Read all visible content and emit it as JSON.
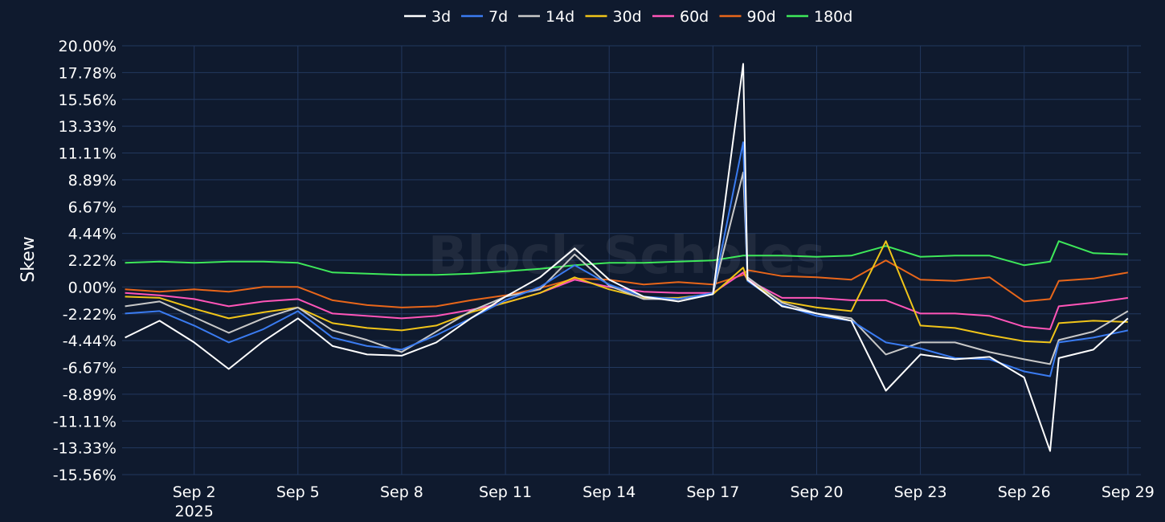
{
  "chart_data": {
    "type": "line",
    "title": "",
    "ylabel": "Skew",
    "xlabel": "",
    "watermark": "Block Scholes",
    "x_range": [
      "2025-08-30T22:00",
      "2025-09-29T09:00"
    ],
    "y_range": [
      -15.56,
      20.0
    ],
    "y_ticks": [
      "20.00%",
      "17.78%",
      "15.56%",
      "13.33%",
      "11.11%",
      "8.89%",
      "6.67%",
      "4.44%",
      "2.22%",
      "0.00%",
      "-2.22%",
      "-4.44%",
      "-6.67%",
      "-8.89%",
      "-11.11%",
      "-13.33%",
      "-15.56%"
    ],
    "x_ticks": [
      {
        "date": "2025-09-02",
        "label": "Sep 2",
        "sub": "2025"
      },
      {
        "date": "2025-09-05",
        "label": "Sep 5",
        "sub": ""
      },
      {
        "date": "2025-09-08",
        "label": "Sep 8",
        "sub": ""
      },
      {
        "date": "2025-09-11",
        "label": "Sep 11",
        "sub": ""
      },
      {
        "date": "2025-09-14",
        "label": "Sep 14",
        "sub": ""
      },
      {
        "date": "2025-09-17",
        "label": "Sep 17",
        "sub": ""
      },
      {
        "date": "2025-09-20",
        "label": "Sep 20",
        "sub": ""
      },
      {
        "date": "2025-09-23",
        "label": "Sep 23",
        "sub": ""
      },
      {
        "date": "2025-09-26",
        "label": "Sep 26",
        "sub": ""
      },
      {
        "date": "2025-09-29",
        "label": "Sep 29",
        "sub": ""
      }
    ],
    "grid": true,
    "legend_position": "top-center",
    "x": [
      "2025-08-31T00:00",
      "2025-09-01T00:00",
      "2025-09-02T00:00",
      "2025-09-03T00:00",
      "2025-09-04T00:00",
      "2025-09-05T00:00",
      "2025-09-06T00:00",
      "2025-09-07T00:00",
      "2025-09-08T00:00",
      "2025-09-09T00:00",
      "2025-09-10T00:00",
      "2025-09-11T00:00",
      "2025-09-12T00:00",
      "2025-09-13T00:00",
      "2025-09-14T00:00",
      "2025-09-15T00:00",
      "2025-09-16T00:00",
      "2025-09-17T00:00",
      "2025-09-17T21:00",
      "2025-09-18T00:00",
      "2025-09-19T00:00",
      "2025-09-20T00:00",
      "2025-09-21T00:00",
      "2025-09-22T00:00",
      "2025-09-23T00:00",
      "2025-09-24T00:00",
      "2025-09-25T00:00",
      "2025-09-26T00:00",
      "2025-09-26T18:00",
      "2025-09-27T00:00",
      "2025-09-28T00:00",
      "2025-09-29T00:00"
    ],
    "series": [
      {
        "name": "3d",
        "color": "#ffffff",
        "values": [
          -4.2,
          -2.8,
          -4.6,
          -6.8,
          -4.5,
          -2.6,
          -4.9,
          -5.6,
          -5.7,
          -4.6,
          -2.6,
          -0.8,
          0.8,
          3.2,
          0.6,
          -0.8,
          -1.2,
          -0.6,
          18.5,
          0.6,
          -1.6,
          -2.2,
          -2.8,
          -8.6,
          -5.6,
          -6.0,
          -5.8,
          -7.5,
          -13.6,
          -5.9,
          -5.2,
          -2.6
        ]
      },
      {
        "name": "7d",
        "color": "#3a7bf0",
        "values": [
          -2.2,
          -2.0,
          -3.2,
          -4.6,
          -3.5,
          -2.0,
          -4.2,
          -4.9,
          -5.2,
          -4.0,
          -2.6,
          -1.1,
          0.0,
          1.8,
          0.2,
          -0.8,
          -1.0,
          -0.5,
          12.0,
          0.5,
          -1.5,
          -2.4,
          -2.8,
          -4.6,
          -5.1,
          -5.9,
          -6.0,
          -7.0,
          -7.4,
          -4.6,
          -4.2,
          -3.6
        ]
      },
      {
        "name": "14d",
        "color": "#c8c8c8",
        "values": [
          -1.6,
          -1.2,
          -2.5,
          -3.8,
          -2.6,
          -1.7,
          -3.6,
          -4.4,
          -5.4,
          -3.7,
          -2.0,
          -0.8,
          -0.2,
          2.7,
          0.1,
          -1.0,
          -1.0,
          -0.6,
          9.5,
          0.8,
          -1.3,
          -2.2,
          -2.6,
          -5.6,
          -4.6,
          -4.6,
          -5.4,
          -6.0,
          -6.4,
          -4.4,
          -3.7,
          -2.0
        ]
      },
      {
        "name": "30d",
        "color": "#f0c419",
        "values": [
          -0.8,
          -0.9,
          -1.8,
          -2.6,
          -2.1,
          -1.7,
          -3.0,
          -3.4,
          -3.6,
          -3.2,
          -2.1,
          -1.3,
          -0.5,
          0.8,
          -0.2,
          -0.9,
          -0.9,
          -0.6,
          1.6,
          0.5,
          -1.2,
          -1.7,
          -2.0,
          3.8,
          -3.2,
          -3.4,
          -4.0,
          -4.5,
          -4.6,
          -3.0,
          -2.8,
          -2.9
        ]
      },
      {
        "name": "60d",
        "color": "#ff55b8",
        "values": [
          -0.5,
          -0.7,
          -1.0,
          -1.6,
          -1.2,
          -1.0,
          -2.2,
          -2.4,
          -2.6,
          -2.4,
          -1.9,
          -1.3,
          -0.5,
          0.6,
          0.0,
          -0.4,
          -0.5,
          -0.5,
          1.2,
          0.6,
          -0.9,
          -0.9,
          -1.1,
          -1.1,
          -2.2,
          -2.2,
          -2.4,
          -3.3,
          -3.5,
          -1.6,
          -1.3,
          -0.9
        ]
      },
      {
        "name": "90d",
        "color": "#e8661a",
        "values": [
          -0.2,
          -0.4,
          -0.2,
          -0.4,
          0.0,
          0.0,
          -1.1,
          -1.5,
          -1.7,
          -1.6,
          -1.1,
          -0.7,
          -0.1,
          0.7,
          0.6,
          0.2,
          0.4,
          0.2,
          1.0,
          1.4,
          0.9,
          0.8,
          0.6,
          2.2,
          0.6,
          0.5,
          0.8,
          -1.2,
          -1.0,
          0.5,
          0.7,
          1.2
        ]
      },
      {
        "name": "180d",
        "color": "#3ee85a",
        "values": [
          2.0,
          2.1,
          2.0,
          2.1,
          2.1,
          2.0,
          1.2,
          1.1,
          1.0,
          1.0,
          1.1,
          1.3,
          1.5,
          1.8,
          2.0,
          2.0,
          2.1,
          2.2,
          2.6,
          2.6,
          2.6,
          2.5,
          2.6,
          3.4,
          2.5,
          2.6,
          2.6,
          1.8,
          2.1,
          3.8,
          2.8,
          2.7
        ]
      }
    ]
  }
}
